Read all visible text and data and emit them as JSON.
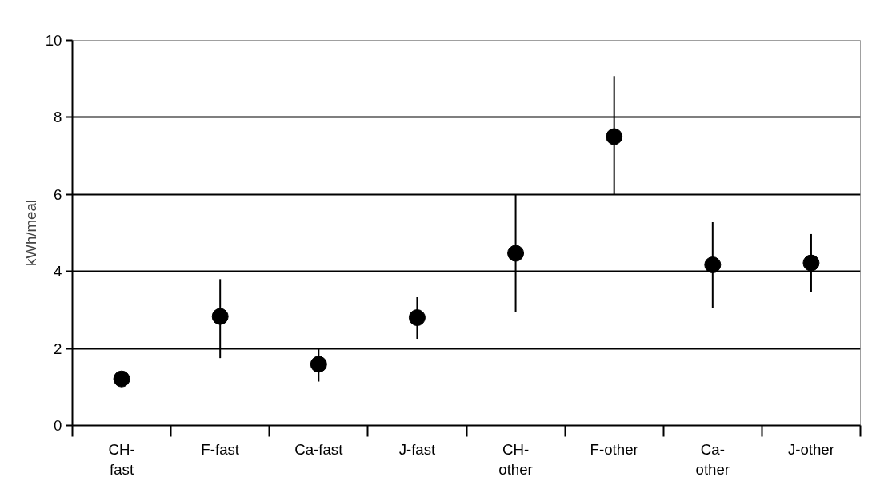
{
  "chart_data": {
    "type": "scatter",
    "ylabel": "kWh/meal",
    "categories": [
      "CH- fast",
      "F-fast",
      "Ca-fast",
      "J-fast",
      "CH- other",
      "F-other",
      "Ca- other",
      "J-other"
    ],
    "values": [
      1.21,
      2.83,
      1.59,
      2.8,
      4.47,
      7.5,
      4.17,
      4.22
    ],
    "errors": [
      null,
      [
        1.75,
        3.8
      ],
      [
        1.14,
        2.0
      ],
      [
        2.25,
        3.33
      ],
      [
        2.95,
        6.0
      ],
      [
        6.0,
        9.07
      ],
      [
        3.05,
        5.28
      ],
      [
        3.46,
        4.97
      ]
    ],
    "color": "#000000",
    "marker": "circle",
    "ylim": [
      0,
      10
    ],
    "yticks": [
      0,
      2,
      4,
      6,
      8,
      10
    ],
    "grid": "y"
  }
}
